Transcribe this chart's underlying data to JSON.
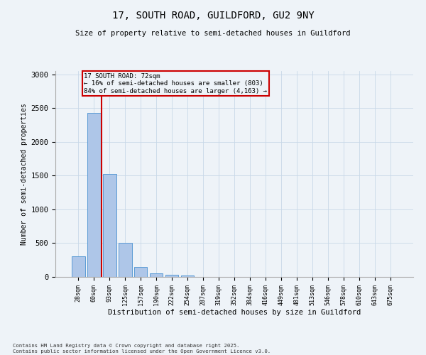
{
  "title_line1": "17, SOUTH ROAD, GUILDFORD, GU2 9NY",
  "title_line2": "Size of property relative to semi-detached houses in Guildford",
  "xlabel": "Distribution of semi-detached houses by size in Guildford",
  "ylabel": "Number of semi-detached properties",
  "footnote": "Contains HM Land Registry data © Crown copyright and database right 2025.\nContains public sector information licensed under the Open Government Licence v3.0.",
  "bar_labels": [
    "28sqm",
    "60sqm",
    "93sqm",
    "125sqm",
    "157sqm",
    "190sqm",
    "222sqm",
    "254sqm",
    "287sqm",
    "319sqm",
    "352sqm",
    "384sqm",
    "416sqm",
    "449sqm",
    "481sqm",
    "513sqm",
    "546sqm",
    "578sqm",
    "610sqm",
    "643sqm",
    "675sqm"
  ],
  "bar_values": [
    300,
    2430,
    1530,
    510,
    150,
    50,
    35,
    20,
    0,
    0,
    0,
    0,
    0,
    0,
    0,
    0,
    0,
    0,
    0,
    0,
    0
  ],
  "bar_color": "#aec6e8",
  "bar_edge_color": "#5b9bd5",
  "grid_color": "#c8d8e8",
  "bg_color": "#eef3f8",
  "vline_x_index": 1.5,
  "vline_color": "#cc0000",
  "annotation_text": "17 SOUTH ROAD: 72sqm\n← 16% of semi-detached houses are smaller (803)\n84% of semi-detached houses are larger (4,163) →",
  "annotation_box_color": "#cc0000",
  "ylim": [
    0,
    3050
  ],
  "yticks": [
    0,
    500,
    1000,
    1500,
    2000,
    2500,
    3000
  ]
}
